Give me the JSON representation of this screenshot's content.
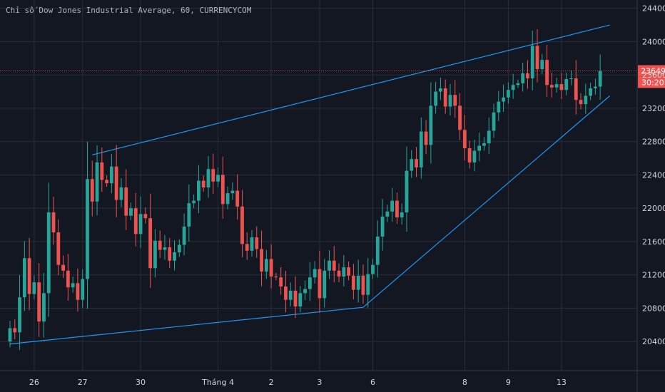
{
  "title": "Chỉ số Dow Jones Industrial Average, 60, CURRENCYCOM",
  "colors": {
    "background": "#131722",
    "grid": "#2a2e39",
    "up": "#26a69a",
    "down": "#ef5350",
    "trendline": "#2196f3",
    "axis_text": "#d1d4dc",
    "price_line": "#ef5350"
  },
  "chart_data": {
    "type": "candlestick",
    "x_ticks": [
      "26",
      "27",
      "30",
      "Tháng 4",
      "2",
      "3",
      "6",
      "8",
      "9",
      "13"
    ],
    "y_ticks": [
      20400,
      20800,
      21200,
      21600,
      22000,
      22400,
      22800,
      23200,
      23600,
      24000,
      24400
    ],
    "ylim": [
      20050,
      24500
    ],
    "last_price": "23649",
    "countdown": "30:20",
    "grid": true,
    "trendlines": [
      {
        "from": {
          "bar": 0,
          "price": 20370
        },
        "to": {
          "bar": 73,
          "price": 20810
        }
      },
      {
        "from": {
          "bar": 73,
          "price": 20810
        },
        "to": {
          "bar": 124,
          "price": 23350
        }
      },
      {
        "from": {
          "bar": 17,
          "price": 22640
        },
        "to": {
          "bar": 124,
          "price": 24200
        }
      }
    ],
    "closes": [
      20560,
      20510,
      20930,
      21400,
      20970,
      21110,
      20640,
      20980,
      21950,
      21710,
      21320,
      21250,
      21050,
      21100,
      20900,
      21150,
      22350,
      22080,
      22550,
      22340,
      22300,
      22500,
      22100,
      22250,
      21910,
      22000,
      21690,
      21930,
      21880,
      21280,
      21610,
      21500,
      21530,
      21370,
      21470,
      21560,
      21780,
      22060,
      22090,
      22330,
      22250,
      22470,
      22320,
      22400,
      22050,
      22180,
      22210,
      22020,
      21570,
      21490,
      21650,
      21510,
      21240,
      21390,
      21180,
      21170,
      21060,
      20900,
      21010,
      20820,
      20980,
      21030,
      21170,
      21270,
      20920,
      21250,
      21370,
      21250,
      21180,
      21290,
      21190,
      21020,
      21190,
      20960,
      21210,
      21320,
      21660,
      21900,
      21960,
      22090,
      21890,
      21950,
      22450,
      22590,
      22490,
      22920,
      22760,
      23230,
      23400,
      23440,
      23220,
      23360,
      23230,
      22940,
      22720,
      22550,
      22690,
      22750,
      22780,
      22930,
      23150,
      23280,
      23330,
      23420,
      23480,
      23500,
      23620,
      23560,
      23950,
      23670,
      23780,
      23480,
      23450,
      23490,
      23420,
      23550,
      23560,
      23300,
      23250,
      23350,
      23440,
      23460,
      23649
    ],
    "opens": [
      20400,
      20560,
      20510,
      20930,
      21400,
      20970,
      21110,
      20640,
      20980,
      21950,
      21710,
      21320,
      21250,
      21050,
      21100,
      20900,
      21150,
      22350,
      22080,
      22550,
      22340,
      22300,
      22500,
      22100,
      22250,
      21910,
      22000,
      21690,
      21930,
      21880,
      21280,
      21610,
      21500,
      21530,
      21370,
      21470,
      21560,
      21780,
      22060,
      22090,
      22330,
      22250,
      22470,
      22320,
      22400,
      22050,
      22180,
      22210,
      22020,
      21570,
      21490,
      21650,
      21510,
      21240,
      21390,
      21180,
      21170,
      21060,
      20900,
      21010,
      20820,
      20980,
      21030,
      21170,
      21270,
      20920,
      21250,
      21370,
      21250,
      21180,
      21290,
      21190,
      21020,
      21190,
      20960,
      21210,
      21320,
      21660,
      21900,
      21960,
      22090,
      21890,
      21950,
      22450,
      22590,
      22490,
      22920,
      22760,
      23230,
      23400,
      23440,
      23220,
      23360,
      23230,
      22940,
      22720,
      22550,
      22690,
      22750,
      22780,
      22930,
      23150,
      23280,
      23330,
      23420,
      23480,
      23500,
      23620,
      23560,
      23950,
      23670,
      23780,
      23480,
      23450,
      23490,
      23420,
      23550,
      23560,
      23300,
      23250,
      23350,
      23440,
      23460
    ]
  }
}
